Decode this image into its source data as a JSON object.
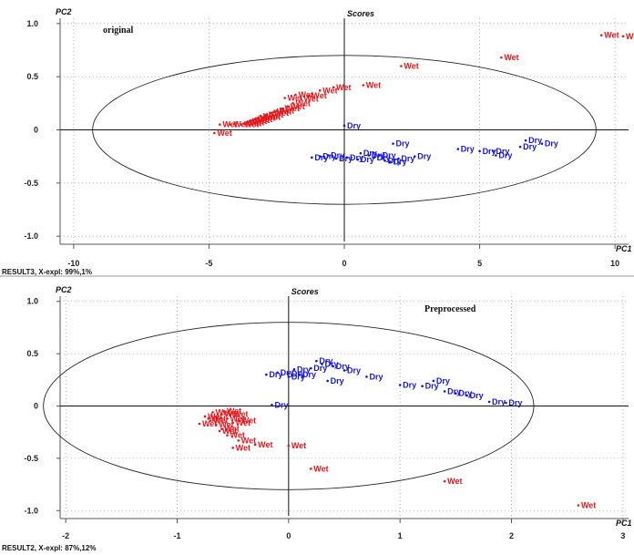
{
  "colors": {
    "wet": "#e8151a",
    "dry": "#1414e6"
  },
  "chart_data": [
    {
      "type": "scatter",
      "title": "Scores",
      "xlabel": "PC1",
      "ylabel": "PC2",
      "annotation": "original",
      "footer": "RESULT3, X-expl: 99%,1%",
      "xlim": [
        -10.5,
        10.5
      ],
      "ylim": [
        -1.05,
        1.05
      ],
      "xticks": [
        -10,
        -5,
        0,
        5,
        10
      ],
      "yticks": [
        -1.0,
        -0.5,
        0,
        0.5,
        1.0
      ],
      "ytick_labels": [
        "-1.0",
        "-0.5",
        "0",
        "0.5",
        "1.0"
      ],
      "grid": true,
      "ellipse": {
        "rx": 9.3,
        "ry": 0.7
      },
      "series": [
        {
          "label": "Wet",
          "color": "wet",
          "points": [
            [
              9.5,
              0.89
            ],
            [
              10.3,
              0.88
            ],
            [
              5.8,
              0.68
            ],
            [
              2.1,
              0.6
            ],
            [
              0.7,
              0.42
            ],
            [
              -0.4,
              0.4
            ],
            [
              -0.9,
              0.37
            ],
            [
              -1.3,
              0.32
            ],
            [
              -1.6,
              0.29
            ],
            [
              -1.9,
              0.25
            ],
            [
              -2.1,
              0.22
            ],
            [
              -2.3,
              0.2
            ],
            [
              -2.5,
              0.18
            ],
            [
              -2.7,
              0.16
            ],
            [
              -2.9,
              0.14
            ],
            [
              -3.0,
              0.12
            ],
            [
              -3.1,
              0.13
            ],
            [
              -3.2,
              0.11
            ],
            [
              -3.3,
              0.1
            ],
            [
              -3.4,
              0.09
            ],
            [
              -3.5,
              0.08
            ],
            [
              -3.6,
              0.07
            ],
            [
              -3.7,
              0.06
            ],
            [
              -3.8,
              0.05
            ],
            [
              -4.2,
              0.05
            ],
            [
              -4.6,
              0.05
            ],
            [
              -4.8,
              -0.03
            ],
            [
              -2.6,
              0.17
            ],
            [
              -2.2,
              0.3
            ],
            [
              -1.8,
              0.33
            ]
          ]
        },
        {
          "label": "Dry",
          "color": "dry",
          "points": [
            [
              -1.2,
              -0.26
            ],
            [
              -0.9,
              -0.25
            ],
            [
              -0.6,
              -0.24
            ],
            [
              -0.3,
              -0.27
            ],
            [
              0.1,
              -0.26
            ],
            [
              0.6,
              -0.22
            ],
            [
              0.9,
              -0.24
            ],
            [
              1.1,
              -0.26
            ],
            [
              1.3,
              -0.24
            ],
            [
              1.5,
              -0.29
            ],
            [
              1.7,
              -0.3
            ],
            [
              1.8,
              -0.13
            ],
            [
              2.6,
              -0.25
            ],
            [
              4.2,
              -0.18
            ],
            [
              5.0,
              -0.2
            ],
            [
              5.5,
              -0.2
            ],
            [
              5.6,
              -0.24
            ],
            [
              6.5,
              -0.16
            ],
            [
              6.7,
              -0.1
            ],
            [
              7.3,
              -0.13
            ],
            [
              0.0,
              0.04
            ],
            [
              0.5,
              -0.28
            ],
            [
              2.0,
              -0.27
            ]
          ]
        }
      ]
    },
    {
      "type": "scatter",
      "title": "Scores",
      "xlabel": "PC1",
      "ylabel": "PC2",
      "annotation": "Preprocessed",
      "footer": "RESULT2, X-expl: 87%,12%",
      "xlim": [
        -2.05,
        3.05
      ],
      "ylim": [
        -1.05,
        1.05
      ],
      "xticks": [
        -2,
        -1,
        0,
        1,
        2,
        3
      ],
      "yticks": [
        -1.0,
        -0.5,
        0,
        0.5,
        1.0
      ],
      "ytick_labels": [
        "-1.0",
        "-0.5",
        "0",
        "0.5",
        "1.0"
      ],
      "grid": true,
      "ellipse": {
        "rx": 2.2,
        "ry": 0.8
      },
      "series": [
        {
          "label": "Wet",
          "color": "wet",
          "points": [
            [
              2.6,
              -0.95
            ],
            [
              1.4,
              -0.72
            ],
            [
              0.2,
              -0.6
            ],
            [
              0.0,
              -0.38
            ],
            [
              -0.3,
              -0.37
            ],
            [
              -0.5,
              -0.4
            ],
            [
              -0.45,
              -0.33
            ],
            [
              -0.55,
              -0.28
            ],
            [
              -0.6,
              -0.22
            ],
            [
              -0.65,
              -0.18
            ],
            [
              -0.7,
              -0.14
            ],
            [
              -0.75,
              -0.1
            ],
            [
              -0.6,
              -0.08
            ],
            [
              -0.55,
              -0.12
            ],
            [
              -0.5,
              -0.16
            ],
            [
              -0.45,
              -0.14
            ],
            [
              -0.62,
              -0.24
            ],
            [
              -0.68,
              -0.06
            ],
            [
              -0.72,
              -0.12
            ],
            [
              -0.8,
              -0.17
            ],
            [
              -0.58,
              -0.05
            ],
            [
              -0.52,
              -0.08
            ]
          ]
        },
        {
          "label": "Dry",
          "color": "dry",
          "points": [
            [
              -0.2,
              0.3
            ],
            [
              -0.1,
              0.32
            ],
            [
              0.0,
              0.31
            ],
            [
              0.05,
              0.35
            ],
            [
              0.1,
              0.3
            ],
            [
              0.2,
              0.36
            ],
            [
              0.3,
              0.4
            ],
            [
              0.4,
              0.38
            ],
            [
              0.5,
              0.34
            ],
            [
              0.7,
              0.28
            ],
            [
              0.25,
              0.43
            ],
            [
              0.35,
              0.24
            ],
            [
              1.0,
              0.2
            ],
            [
              1.2,
              0.19
            ],
            [
              1.3,
              0.24
            ],
            [
              1.4,
              0.14
            ],
            [
              1.5,
              0.12
            ],
            [
              1.6,
              0.1
            ],
            [
              1.8,
              0.04
            ],
            [
              1.95,
              0.03
            ],
            [
              -0.15,
              0.01
            ],
            [
              0.0,
              0.28
            ]
          ]
        }
      ]
    }
  ]
}
